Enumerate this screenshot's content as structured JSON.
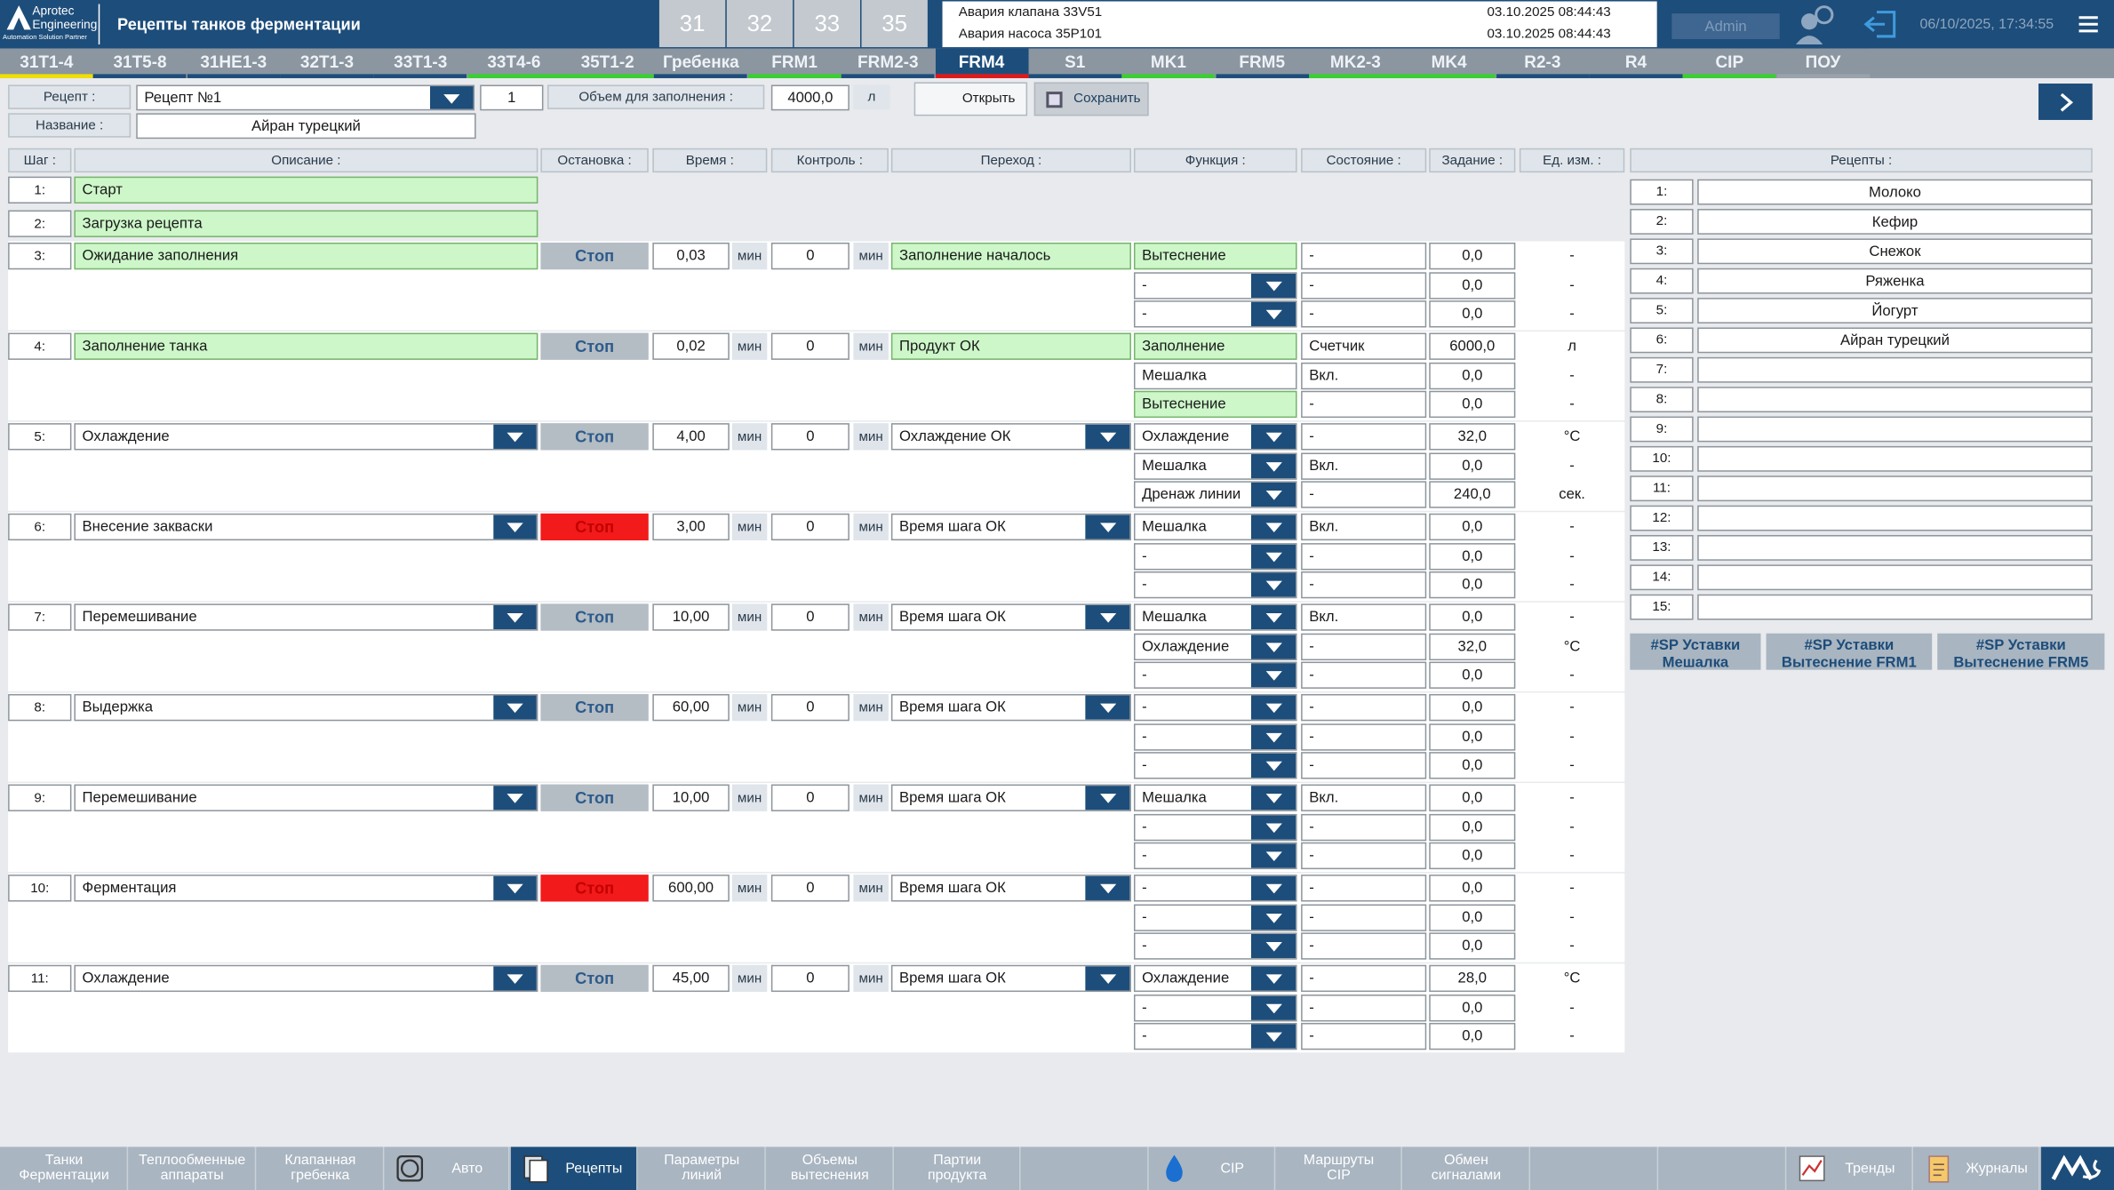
{
  "header": {
    "logo": {
      "name": "Aprotec",
      "line2": "Engineering",
      "tagline": "Automation Solution Partner"
    },
    "title": "Рецепты танков ферментации",
    "tanks": [
      "31",
      "32",
      "33",
      "35"
    ],
    "alarms": [
      {
        "text": "Авария клапана 33V51",
        "time": "03.10.2025 08:44:43"
      },
      {
        "text": "Авария насоса 35P101",
        "time": "03.10.2025 08:44:43"
      }
    ],
    "user": "Admin",
    "datetime": "06/10/2025, 17:34:55"
  },
  "tabs": {
    "active": "FRM4",
    "items": [
      {
        "label": "31T1-4",
        "indicator": "#f0df00"
      },
      {
        "label": "31T5-8",
        "indicator": "#1d4d7a"
      },
      {
        "label": "31HE1-3",
        "indicator": "#1d4d7a"
      },
      {
        "label": "32T1-3",
        "indicator": "#1d4d7a"
      },
      {
        "label": "33T1-3",
        "indicator": "#1d4d7a"
      },
      {
        "label": "33T4-6",
        "indicator": "#38d030"
      },
      {
        "label": "35T1-2",
        "indicator": "#38d030"
      },
      {
        "label": "Гребенка",
        "indicator": "#1d4d7a"
      },
      {
        "label": "FRM1",
        "indicator": "#38d030"
      },
      {
        "label": "FRM2-3",
        "indicator": "#1d4d7a"
      },
      {
        "label": "FRM4",
        "indicator": "#e01818"
      },
      {
        "label": "S1",
        "indicator": "#1d4d7a"
      },
      {
        "label": "MK1",
        "indicator": "#38d030"
      },
      {
        "label": "FRM5",
        "indicator": "#1d4d7a"
      },
      {
        "label": "MK2-3",
        "indicator": "#38d030"
      },
      {
        "label": "MK4",
        "indicator": "#38d030"
      },
      {
        "label": "R2-3",
        "indicator": "#1d4d7a"
      },
      {
        "label": "R4",
        "indicator": "#1d4d7a"
      },
      {
        "label": "CIP",
        "indicator": "#38d030"
      },
      {
        "label": "ПОУ",
        "indicator": "#9aa3ac"
      }
    ]
  },
  "recipe": {
    "label": "Рецепт :",
    "selected": "Рецепт №1",
    "number": "1",
    "volume_label": "Объем для заполнения :",
    "volume": "4000,0",
    "volume_unit": "л",
    "open": "Открыть",
    "save": "Сохранить",
    "name_label": "Название :",
    "name": "Айран турецкий"
  },
  "table": {
    "headers": [
      "Шаг :",
      "Описание :",
      "Остановка :",
      "Время :",
      "Контроль :",
      "Переход :",
      "Функция :",
      "Состояние :",
      "Задание :",
      "Ед. изм. :"
    ],
    "steps": [
      {
        "number": "1:",
        "description": "Старт",
        "highlight": true
      },
      {
        "number": "2:",
        "description": "Загрузка рецепта",
        "highlight": true
      },
      {
        "number": "3:",
        "description": "Ожидание заполнения",
        "highlight": true,
        "stop": "Стоп",
        "time": "0,03",
        "time_unit": "мин",
        "control": "0",
        "control_unit": "мин",
        "transition": "Заполнение началось",
        "transition_highlight": true,
        "functions": [
          {
            "name": "Вытеснение",
            "highlight": true,
            "state": "-",
            "setpoint": "0,0",
            "unit": "-"
          },
          {
            "name": "-",
            "dropdown": true,
            "state": "-",
            "setpoint": "0,0",
            "unit": "-"
          },
          {
            "name": "-",
            "dropdown": true,
            "state": "-",
            "setpoint": "0,0",
            "unit": "-"
          }
        ]
      },
      {
        "number": "4:",
        "description": "Заполнение танка",
        "highlight": true,
        "stop": "Стоп",
        "time": "0,02",
        "time_unit": "мин",
        "control": "0",
        "control_unit": "мин",
        "transition": "Продукт ОК",
        "transition_highlight": true,
        "functions": [
          {
            "name": "Заполнение",
            "highlight": true,
            "state": "Счетчик",
            "setpoint": "6000,0",
            "unit": "л"
          },
          {
            "name": "Мешалка",
            "state": "Вкл.",
            "setpoint": "0,0",
            "unit": "-"
          },
          {
            "name": "Вытеснение",
            "highlight": true,
            "state": "-",
            "setpoint": "0,0",
            "unit": "-"
          }
        ]
      },
      {
        "number": "5:",
        "description": "Охлаждение",
        "dropdown": true,
        "stop": "Стоп",
        "time": "4,00",
        "time_unit": "мин",
        "control": "0",
        "control_unit": "мин",
        "transition": "Охлаждение ОК",
        "functions": [
          {
            "name": "Охлаждение",
            "dropdown": true,
            "state": "-",
            "setpoint": "32,0",
            "unit": "°C"
          },
          {
            "name": "Мешалка",
            "dropdown": true,
            "state": "Вкл.",
            "setpoint": "0,0",
            "unit": "-"
          },
          {
            "name": "Дренаж линии",
            "dropdown": true,
            "state": "-",
            "setpoint": "240,0",
            "unit": "сек."
          }
        ]
      },
      {
        "number": "6:",
        "description": "Внесение закваски",
        "dropdown": true,
        "stop": "Стоп",
        "stop_alarm": true,
        "time": "3,00",
        "time_unit": "мин",
        "control": "0",
        "control_unit": "мин",
        "transition": "Время шага ОК",
        "functions": [
          {
            "name": "Мешалка",
            "dropdown": true,
            "state": "Вкл.",
            "setpoint": "0,0",
            "unit": "-"
          },
          {
            "name": "-",
            "dropdown": true,
            "state": "-",
            "setpoint": "0,0",
            "unit": "-"
          },
          {
            "name": "-",
            "dropdown": true,
            "state": "-",
            "setpoint": "0,0",
            "unit": "-"
          }
        ]
      },
      {
        "number": "7:",
        "description": "Перемешивание",
        "dropdown": true,
        "stop": "Стоп",
        "time": "10,00",
        "time_unit": "мин",
        "control": "0",
        "control_unit": "мин",
        "transition": "Время шага ОК",
        "functions": [
          {
            "name": "Мешалка",
            "dropdown": true,
            "state": "Вкл.",
            "setpoint": "0,0",
            "unit": "-"
          },
          {
            "name": "Охлаждение",
            "dropdown": true,
            "state": "-",
            "setpoint": "32,0",
            "unit": "°C"
          },
          {
            "name": "-",
            "dropdown": true,
            "state": "-",
            "setpoint": "0,0",
            "unit": "-"
          }
        ]
      },
      {
        "number": "8:",
        "description": "Выдержка",
        "dropdown": true,
        "stop": "Стоп",
        "time": "60,00",
        "time_unit": "мин",
        "control": "0",
        "control_unit": "мин",
        "transition": "Время шага ОК",
        "functions": [
          {
            "name": "-",
            "dropdown": true,
            "state": "-",
            "setpoint": "0,0",
            "unit": "-"
          },
          {
            "name": "-",
            "dropdown": true,
            "state": "-",
            "setpoint": "0,0",
            "unit": "-"
          },
          {
            "name": "-",
            "dropdown": true,
            "state": "-",
            "setpoint": "0,0",
            "unit": "-"
          }
        ]
      },
      {
        "number": "9:",
        "description": "Перемешивание",
        "dropdown": true,
        "stop": "Стоп",
        "time": "10,00",
        "time_unit": "мин",
        "control": "0",
        "control_unit": "мин",
        "transition": "Время шага ОК",
        "functions": [
          {
            "name": "Мешалка",
            "dropdown": true,
            "state": "Вкл.",
            "setpoint": "0,0",
            "unit": "-"
          },
          {
            "name": "-",
            "dropdown": true,
            "state": "-",
            "setpoint": "0,0",
            "unit": "-"
          },
          {
            "name": "-",
            "dropdown": true,
            "state": "-",
            "setpoint": "0,0",
            "unit": "-"
          }
        ]
      },
      {
        "number": "10:",
        "description": "Ферментация",
        "dropdown": true,
        "stop": "Стоп",
        "stop_alarm": true,
        "time": "600,00",
        "time_unit": "мин",
        "control": "0",
        "control_unit": "мин",
        "transition": "Время шага ОК",
        "functions": [
          {
            "name": "-",
            "dropdown": true,
            "state": "-",
            "setpoint": "0,0",
            "unit": "-"
          },
          {
            "name": "-",
            "dropdown": true,
            "state": "-",
            "setpoint": "0,0",
            "unit": "-"
          },
          {
            "name": "-",
            "dropdown": true,
            "state": "-",
            "setpoint": "0,0",
            "unit": "-"
          }
        ]
      },
      {
        "number": "11:",
        "description": "Охлаждение",
        "dropdown": true,
        "stop": "Стоп",
        "time": "45,00",
        "time_unit": "мин",
        "control": "0",
        "control_unit": "мин",
        "transition": "Время шага ОК",
        "functions": [
          {
            "name": "Охлаждение",
            "dropdown": true,
            "state": "-",
            "setpoint": "28,0",
            "unit": "°C"
          },
          {
            "name": "-",
            "dropdown": true,
            "state": "-",
            "setpoint": "0,0",
            "unit": "-"
          },
          {
            "name": "-",
            "dropdown": true,
            "state": "-",
            "setpoint": "0,0",
            "unit": "-"
          }
        ]
      }
    ]
  },
  "recipes": {
    "title": "Рецепты :",
    "items": [
      {
        "number": "1:",
        "name": "Молоко"
      },
      {
        "number": "2:",
        "name": "Кефир"
      },
      {
        "number": "3:",
        "name": "Снежок"
      },
      {
        "number": "4:",
        "name": "Ряженка"
      },
      {
        "number": "5:",
        "name": "Йогурт"
      },
      {
        "number": "6:",
        "name": "Айран турецкий"
      },
      {
        "number": "7:"
      },
      {
        "number": "8:"
      },
      {
        "number": "9:"
      },
      {
        "number": "10:"
      },
      {
        "number": "11:"
      },
      {
        "number": "12:"
      },
      {
        "number": "13:"
      },
      {
        "number": "14:"
      },
      {
        "number": "15:"
      }
    ],
    "buttons": [
      "#SP Уставки Мешалка",
      "#SP Уставки Вытеснение FRM1",
      "#SP Уставки Вытеснение FRM5"
    ]
  },
  "nav": {
    "active": "Рецепты",
    "items": [
      "Танки Ферментации",
      "Теплообменные аппараты",
      "Клапанная гребенка",
      "Авто",
      "Рецепты",
      "Параметры линий",
      "Объемы вытеснения",
      "Партии продукта",
      "CIP",
      "Маршруты CIP",
      "Обмен сигналами",
      "Тренды",
      "Журналы"
    ]
  }
}
